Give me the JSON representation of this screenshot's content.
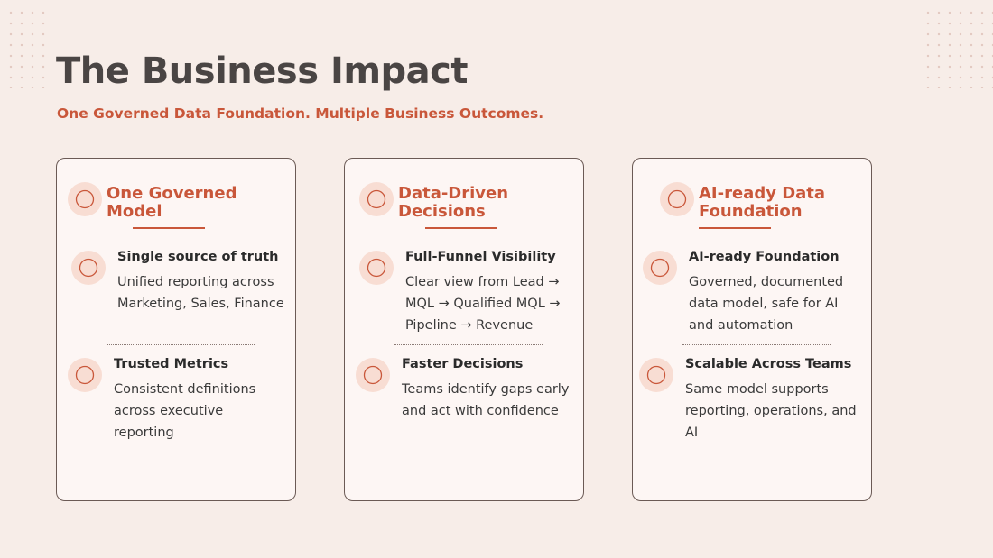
{
  "header": {
    "title": "The Business Impact",
    "subtitle": "One Governed Data Foundation. Multiple Business Outcomes."
  },
  "cards": [
    {
      "title": "One Governed Model",
      "items": [
        {
          "heading": "Single source of truth",
          "body": "Unified reporting across Marketing, Sales, Finance"
        },
        {
          "heading": "Trusted Metrics",
          "body": "Consistent definitions across executive reporting"
        }
      ]
    },
    {
      "title": "Data-Driven Decisions",
      "items": [
        {
          "heading": "Full-Funnel Visibility",
          "body": "Clear view from Lead → MQL → Qualified MQL → Pipeline → Revenue"
        },
        {
          "heading": "Faster Decisions",
          "body": "Teams identify gaps early and act with confidence"
        }
      ]
    },
    {
      "title": "AI-ready Data Foundation",
      "items": [
        {
          "heading": "AI-ready Foundation",
          "body": "Governed, documented data model, safe for AI and automation"
        },
        {
          "heading": "Scalable Across Teams",
          "body": "Same model supports reporting, operations, and AI"
        }
      ]
    }
  ]
}
